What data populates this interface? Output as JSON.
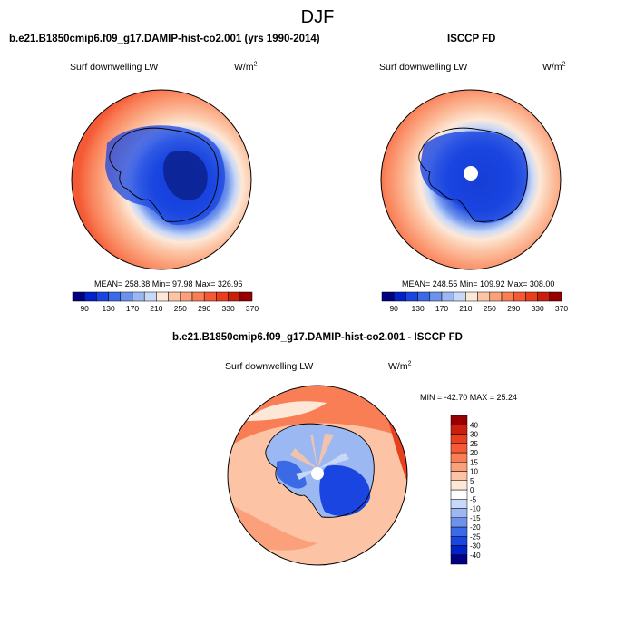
{
  "figure": {
    "title": "DJF"
  },
  "panels": {
    "model": {
      "title": "b.e21.B1850cmip6.f09_g17.DAMIP-hist-co2.001 (yrs 1990-2014)",
      "variable": "Surf downwelling LW",
      "units_base": "W/m",
      "units_exp": "2",
      "stats": "MEAN= 258.38   Min=  97.98   Max= 326.96"
    },
    "obs": {
      "title": "ISCCP FD",
      "variable": "Surf downwelling LW",
      "units_base": "W/m",
      "units_exp": "2",
      "stats": "MEAN= 248.55   Min= 109.92   Max= 308.00"
    },
    "diff": {
      "title": "b.e21.B1850cmip6.f09_g17.DAMIP-hist-co2.001 - ISCCP FD",
      "variable": "Surf downwelling LW",
      "units_base": "W/m",
      "units_exp": "2",
      "stats": "MIN = -42.70 MAX =  25.24"
    }
  },
  "colorbars": {
    "absolute": {
      "orientation": "horizontal",
      "colors": [
        "#000080",
        "#0022c8",
        "#1a45e0",
        "#3a6ae6",
        "#6d92ec",
        "#9cb8f2",
        "#c8d8f8",
        "#fde8d8",
        "#fcc4a4",
        "#fba07a",
        "#f97d55",
        "#f45a35",
        "#e8401e",
        "#c8200c",
        "#960000"
      ],
      "tick_labels": [
        "90",
        "130",
        "170",
        "210",
        "250",
        "290",
        "330",
        "370"
      ]
    },
    "difference": {
      "orientation": "vertical",
      "colors": [
        "#000080",
        "#0022c8",
        "#1a45e0",
        "#3a6ae6",
        "#6d92ec",
        "#9cb8f2",
        "#c8d8f8",
        "#ffffff",
        "#fde8d8",
        "#fcc4a4",
        "#fba07a",
        "#f97d55",
        "#f45a35",
        "#e8401e",
        "#c8200c",
        "#960000"
      ],
      "tick_labels": [
        "-40",
        "-30",
        "-25",
        "-20",
        "-15",
        "-10",
        "-5",
        "0",
        "5",
        "10",
        "15",
        "20",
        "25",
        "30",
        "40"
      ]
    }
  },
  "map": {
    "projection": "south-polar-stereographic",
    "region": "Antarctica"
  }
}
